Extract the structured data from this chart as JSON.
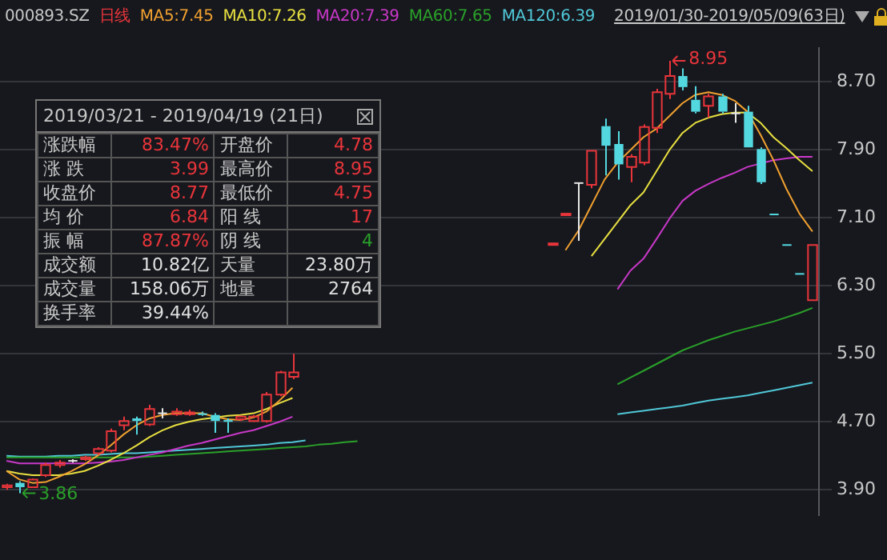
{
  "chart_data": {
    "type": "candlestick",
    "title": "000893.SZ",
    "subtitle": "日线",
    "categories": [
      null,
      null,
      null,
      null,
      null,
      null,
      null,
      null,
      null,
      null,
      null,
      null,
      null,
      null,
      null,
      null,
      null,
      null,
      null,
      null,
      null,
      null,
      null,
      null,
      null,
      null,
      null,
      null,
      null,
      null,
      null,
      null,
      null,
      null,
      null,
      null,
      null,
      null,
      null,
      null,
      null,
      null,
      null,
      null,
      null,
      null,
      null,
      null,
      null,
      null,
      null,
      null,
      null,
      null,
      null,
      null,
      null,
      null,
      null,
      null,
      null,
      null,
      null
    ],
    "ohlc": [
      [
        3.93,
        3.97,
        3.9,
        3.95
      ],
      [
        3.98,
        4.0,
        3.86,
        3.93
      ],
      [
        3.93,
        4.03,
        3.92,
        4.02
      ],
      [
        4.07,
        4.22,
        4.05,
        4.19
      ],
      [
        4.19,
        4.25,
        4.16,
        4.22
      ],
      [
        4.24,
        4.26,
        4.22,
        4.24
      ],
      [
        4.26,
        4.3,
        4.24,
        4.28
      ],
      [
        4.33,
        4.4,
        4.31,
        4.38
      ],
      [
        4.36,
        4.62,
        4.34,
        4.59
      ],
      [
        4.66,
        4.76,
        4.6,
        4.71
      ],
      [
        4.74,
        4.76,
        4.55,
        4.71
      ],
      [
        4.67,
        4.9,
        4.65,
        4.85
      ],
      [
        4.8,
        4.86,
        4.74,
        4.8
      ],
      [
        4.79,
        4.86,
        4.77,
        4.82
      ],
      [
        4.79,
        4.84,
        4.77,
        4.81
      ],
      [
        4.8,
        4.82,
        4.77,
        4.78
      ],
      [
        4.78,
        4.8,
        4.57,
        4.71
      ],
      [
        4.72,
        4.74,
        4.57,
        4.7
      ],
      [
        4.73,
        4.77,
        4.71,
        4.76
      ],
      [
        4.71,
        4.78,
        4.7,
        4.76
      ],
      [
        4.71,
        5.05,
        4.69,
        5.02
      ],
      [
        5.02,
        5.3,
        5.0,
        5.28
      ],
      [
        5.23,
        5.5,
        5.2,
        5.28
      ],
      null,
      null,
      null,
      null,
      null,
      null,
      null,
      null,
      null,
      null,
      null,
      null,
      null,
      null,
      null,
      null,
      null,
      null,
      null,
      [
        6.79,
        6.8,
        6.79,
        6.8
      ],
      [
        7.14,
        7.15,
        7.14,
        7.15
      ],
      [
        7.51,
        7.51,
        6.83,
        7.51
      ],
      [
        7.49,
        7.89,
        7.45,
        7.89
      ],
      [
        8.18,
        8.27,
        7.6,
        7.95
      ],
      [
        7.97,
        8.12,
        7.55,
        7.73
      ],
      [
        7.7,
        7.85,
        7.52,
        7.82
      ],
      [
        7.75,
        8.2,
        7.72,
        8.17
      ],
      [
        8.16,
        8.62,
        8.1,
        8.58
      ],
      [
        8.56,
        8.95,
        8.5,
        8.77
      ],
      [
        8.77,
        8.86,
        8.6,
        8.64
      ],
      [
        8.49,
        8.65,
        8.33,
        8.35
      ],
      [
        8.42,
        8.56,
        8.28,
        8.53
      ],
      [
        8.53,
        8.56,
        8.33,
        8.35
      ],
      [
        8.33,
        8.45,
        8.22,
        8.33
      ],
      [
        8.35,
        8.42,
        7.93,
        7.93
      ],
      [
        7.91,
        7.93,
        7.5,
        7.52
      ],
      [
        7.15,
        7.15,
        7.14,
        7.14
      ],
      [
        6.79,
        6.79,
        6.78,
        6.78
      ],
      [
        6.45,
        6.45,
        6.44,
        6.44
      ],
      [
        6.13,
        6.78,
        6.13,
        6.78
      ]
    ],
    "colors": [
      "#e8353b",
      "#54d8e0",
      "#e8353b",
      "#e8353b",
      "#e8353b",
      "#e6e6e6",
      "#e8353b",
      "#e8353b",
      "#e8353b",
      "#e8353b",
      "#54d8e0",
      "#e8353b",
      "#e6e6e6",
      "#e8353b",
      "#e8353b",
      "#54d8e0",
      "#54d8e0",
      "#54d8e0",
      "#e8353b",
      "#e8353b",
      "#e8353b",
      "#e8353b",
      "#e8353b",
      null,
      null,
      null,
      null,
      null,
      null,
      null,
      null,
      null,
      null,
      null,
      null,
      null,
      null,
      null,
      null,
      null,
      null,
      null,
      "#e8353b",
      "#e8353b",
      "#e6e6e6",
      "#e8353b",
      "#54d8e0",
      "#54d8e0",
      "#e8353b",
      "#e8353b",
      "#e8353b",
      "#e8353b",
      "#54d8e0",
      "#54d8e0",
      "#e8353b",
      "#54d8e0",
      "#e6e6e6",
      "#54d8e0",
      "#54d8e0",
      "#54d8e0",
      "#54d8e0",
      "#54d8e0",
      "#e8353b"
    ],
    "series": [
      {
        "type": "line",
        "name": "MA5:7.45",
        "color": "#f0a030",
        "values": [
          4.12,
          4.02,
          3.98,
          3.99,
          4.05,
          4.12,
          4.2,
          4.3,
          4.42,
          4.55,
          4.66,
          4.74,
          4.78,
          4.8,
          4.8,
          4.8,
          4.76,
          4.73,
          4.72,
          4.75,
          4.82,
          4.95,
          5.1,
          null,
          null,
          null,
          null,
          null,
          null,
          null,
          null,
          null,
          null,
          null,
          null,
          null,
          null,
          null,
          null,
          null,
          null,
          null,
          null,
          6.72,
          6.95,
          7.25,
          7.55,
          7.75,
          7.9,
          8.05,
          8.15,
          8.3,
          8.45,
          8.55,
          8.58,
          8.55,
          8.48,
          8.35,
          8.08,
          7.78,
          7.44,
          7.15,
          6.94
        ]
      },
      {
        "type": "line",
        "name": "MA10:7.26",
        "color": "#e8e040",
        "values": [
          4.12,
          4.09,
          4.07,
          4.07,
          4.07,
          4.09,
          4.12,
          4.18,
          4.25,
          4.33,
          4.42,
          4.52,
          4.6,
          4.66,
          4.7,
          4.73,
          4.75,
          4.77,
          4.78,
          4.8,
          4.85,
          4.92,
          4.98,
          null,
          null,
          null,
          null,
          null,
          null,
          null,
          null,
          null,
          null,
          null,
          null,
          null,
          null,
          null,
          null,
          null,
          null,
          null,
          null,
          null,
          null,
          6.65,
          6.85,
          7.05,
          7.25,
          7.4,
          7.65,
          7.9,
          8.1,
          8.22,
          8.28,
          8.32,
          8.34,
          8.34,
          8.22,
          8.05,
          7.92,
          7.78,
          7.65
        ]
      },
      {
        "type": "line",
        "name": "MA20:7.39",
        "color": "#c838c8",
        "values": [
          4.24,
          4.21,
          4.21,
          4.21,
          4.21,
          4.21,
          4.21,
          4.22,
          4.23,
          4.25,
          4.28,
          4.31,
          4.34,
          4.38,
          4.42,
          4.45,
          4.49,
          4.53,
          4.57,
          4.6,
          4.65,
          4.7,
          4.76,
          null,
          null,
          null,
          null,
          null,
          null,
          null,
          null,
          null,
          null,
          null,
          null,
          null,
          null,
          null,
          null,
          null,
          null,
          null,
          null,
          null,
          null,
          null,
          null,
          6.26,
          6.48,
          6.62,
          6.85,
          7.09,
          7.3,
          7.42,
          7.5,
          7.57,
          7.63,
          7.7,
          7.74,
          7.78,
          7.8,
          7.82,
          7.82
        ]
      },
      {
        "type": "line",
        "name": "MA60:7.65",
        "color": "#2aa02a",
        "values": [
          4.28,
          4.28,
          4.28,
          4.28,
          4.28,
          4.28,
          4.28,
          4.28,
          4.28,
          4.28,
          4.28,
          4.29,
          4.3,
          4.31,
          4.32,
          4.33,
          4.34,
          4.35,
          4.36,
          4.37,
          4.38,
          4.39,
          4.4,
          4.41,
          4.43,
          4.44,
          4.46,
          4.47,
          null,
          null,
          null,
          null,
          null,
          null,
          null,
          null,
          null,
          null,
          null,
          null,
          null,
          null,
          null,
          null,
          null,
          null,
          null,
          5.14,
          5.22,
          5.3,
          5.38,
          5.46,
          5.54,
          5.6,
          5.66,
          5.71,
          5.76,
          5.8,
          5.84,
          5.88,
          5.93,
          5.98,
          6.04
        ]
      },
      {
        "type": "line",
        "name": "MA120:6.39",
        "color": "#50c8d8",
        "values": [
          4.3,
          4.29,
          4.29,
          4.29,
          4.3,
          4.3,
          4.31,
          4.31,
          4.32,
          4.33,
          4.33,
          4.34,
          4.35,
          4.36,
          4.37,
          4.38,
          4.39,
          4.4,
          4.41,
          4.42,
          4.43,
          4.45,
          4.46,
          4.48,
          null,
          null,
          null,
          null,
          null,
          null,
          null,
          null,
          null,
          null,
          null,
          null,
          null,
          null,
          null,
          null,
          null,
          null,
          null,
          null,
          null,
          null,
          null,
          4.79,
          4.81,
          4.83,
          4.85,
          4.87,
          4.89,
          4.92,
          4.95,
          4.97,
          4.99,
          5.01,
          5.04,
          5.07,
          5.1,
          5.13,
          5.16
        ]
      }
    ],
    "ylim": [
      3.6,
      9.1
    ],
    "yticks": [
      {
        "value": 3.9,
        "label": "3.90"
      },
      {
        "value": 4.7,
        "label": "4.70"
      },
      {
        "value": 5.5,
        "label": "5.50"
      },
      {
        "value": 6.3,
        "label": "6.30"
      },
      {
        "value": 7.1,
        "label": "7.10"
      },
      {
        "value": 7.9,
        "label": "7.90"
      },
      {
        "value": 8.7,
        "label": "8.70"
      }
    ],
    "grid": "y",
    "legend": "top",
    "tick_labels": "y",
    "annotations": [
      "2019/01/30-2019/05/09(63日)",
      "8.95",
      "3.86",
      "2019/03/21 - 2019/04/19 (21日)",
      "涨跌幅",
      "83.47%",
      "开盘价",
      "4.78",
      "涨 跌",
      "3.99",
      "最高价",
      "8.95",
      "收盘价",
      "8.77",
      "最低价",
      "4.75",
      "均 价",
      "6.84",
      "阳 线",
      "17",
      "振 幅",
      "87.87%",
      "阴 线",
      "4",
      "成交额",
      "10.82亿",
      "天量",
      "23.80万",
      "成交量",
      "158.06万",
      "地量",
      "2764",
      "换手率",
      "39.44%"
    ]
  }
}
